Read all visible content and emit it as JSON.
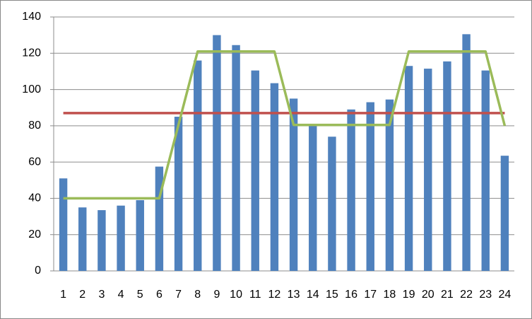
{
  "chart_data": {
    "type": "bar",
    "categories": [
      "1",
      "2",
      "3",
      "4",
      "5",
      "6",
      "7",
      "8",
      "9",
      "10",
      "11",
      "12",
      "13",
      "14",
      "15",
      "16",
      "17",
      "18",
      "19",
      "20",
      "21",
      "22",
      "23",
      "24"
    ],
    "series": [
      {
        "type": "bar",
        "color": "#4f81bd",
        "values": [
          51,
          35,
          33.5,
          36,
          39,
          57.5,
          85,
          116,
          130,
          124.5,
          110.5,
          103.5,
          95,
          80,
          74,
          89,
          93,
          94.5,
          113,
          111.5,
          115.5,
          130.5,
          110.5,
          63.5
        ]
      },
      {
        "type": "line",
        "color": "#c0504d",
        "values": [
          87,
          87,
          87,
          87,
          87,
          87,
          87,
          87,
          87,
          87,
          87,
          87,
          87,
          87,
          87,
          87,
          87,
          87,
          87,
          87,
          87,
          87,
          87,
          87
        ]
      },
      {
        "type": "line",
        "color": "#9bbb59",
        "values": [
          40,
          40,
          40,
          40,
          40,
          40,
          80.5,
          121,
          121,
          121,
          121,
          121,
          80.5,
          80.5,
          80.5,
          80.5,
          80.5,
          80.5,
          121,
          121,
          121,
          121,
          121,
          80
        ]
      }
    ],
    "ylim": [
      0,
      140
    ],
    "yticks": [
      0,
      20,
      40,
      60,
      80,
      100,
      120,
      140
    ],
    "grid": true
  }
}
